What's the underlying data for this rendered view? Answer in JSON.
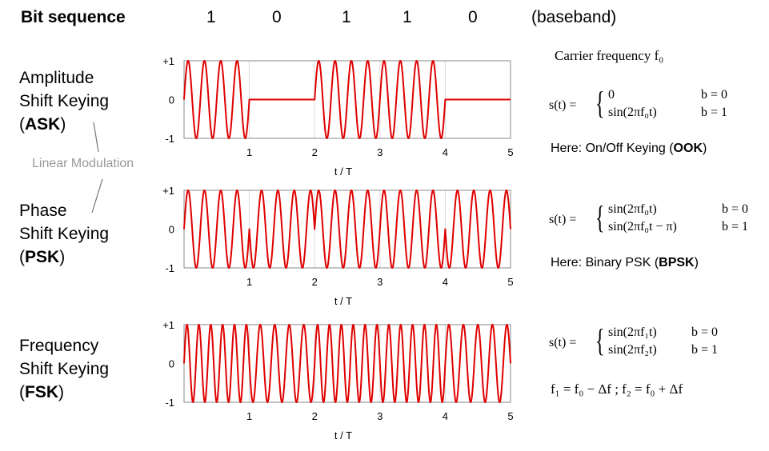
{
  "header": {
    "title": "Bit sequence",
    "bits": [
      "1",
      "0",
      "1",
      "1",
      "0"
    ],
    "baseband": "(baseband)"
  },
  "labels": {
    "ask": {
      "line1": "Amplitude",
      "line2": "Shift Keying",
      "open": "(",
      "abbr": "ASK",
      "close": ")"
    },
    "psk": {
      "line1": "Phase",
      "line2": "Shift Keying",
      "open": "(",
      "abbr": "PSK",
      "close": ")"
    },
    "fsk": {
      "line1": "Frequency",
      "line2": "Shift Keying",
      "open": "(",
      "abbr": "FSK",
      "close": ")"
    },
    "linear_modulation": "Linear Modulation"
  },
  "right": {
    "carrier": "Carrier frequency f₀",
    "ask_formula": {
      "lhs": "s(t) =",
      "row1_expr": "0",
      "row1_cond": "b = 0",
      "row2_expr": "sin(2πf₀t)",
      "row2_cond": "b = 1"
    },
    "ask_note": {
      "prefix": "Here: On/Off Keying (",
      "abbr": "OOK",
      "suffix": ")"
    },
    "psk_formula": {
      "lhs": "s(t) =",
      "row1_expr": "sin(2πf₀t)",
      "row1_cond": "b = 0",
      "row2_expr": "sin(2πf₀t − π)",
      "row2_cond": "b = 1"
    },
    "psk_note": {
      "prefix": "Here: Binary PSK (",
      "abbr": "BPSK",
      "suffix": ")"
    },
    "fsk_formula": {
      "lhs": "s(t) =",
      "row1_expr": "sin(2πf₁t)",
      "row1_cond": "b = 0",
      "row2_expr": "sin(2πf₂t)",
      "row2_cond": "b = 1"
    },
    "fsk_relation": "f₁ = f₀ − Δf  ;  f₂ = f₀ + Δf"
  },
  "chart_data": [
    {
      "type": "line",
      "name": "ask",
      "xlabel": "t / T",
      "ylabel": "",
      "xlim": [
        0,
        5
      ],
      "ylim": [
        -1,
        1
      ],
      "xticks": [
        "1",
        "2",
        "3",
        "4",
        "5"
      ],
      "yticks": [
        "+1",
        "0",
        "-1"
      ],
      "bits": [
        1,
        0,
        1,
        1,
        0
      ],
      "cycles_per_bit": 4,
      "color": "#e00000",
      "grid_color": "#d9d9d9"
    },
    {
      "type": "line",
      "name": "psk",
      "xlabel": "t / T",
      "ylabel": "",
      "xlim": [
        0,
        5
      ],
      "ylim": [
        -1,
        1
      ],
      "xticks": [
        "1",
        "2",
        "3",
        "4",
        "5"
      ],
      "yticks": [
        "+1",
        "0",
        "-1"
      ],
      "bits": [
        1,
        0,
        1,
        1,
        0
      ],
      "cycles_per_bit": 4,
      "color": "#e00000",
      "grid_color": "#d9d9d9"
    },
    {
      "type": "line",
      "name": "fsk",
      "xlabel": "t / T",
      "ylabel": "",
      "xlim": [
        0,
        5
      ],
      "ylim": [
        -1,
        1
      ],
      "xticks": [
        "1",
        "2",
        "3",
        "4",
        "5"
      ],
      "yticks": [
        "+1",
        "0",
        "-1"
      ],
      "bits": [
        1,
        0,
        1,
        1,
        0
      ],
      "cycles_per_bit_b0": 4.5,
      "cycles_per_bit_b1": 5.5,
      "color": "#e00000",
      "grid_color": "#d9d9d9"
    }
  ]
}
